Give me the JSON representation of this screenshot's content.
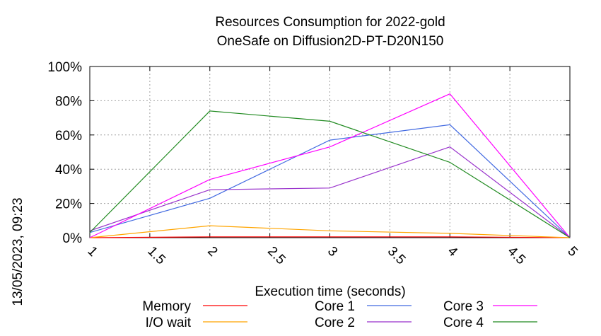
{
  "chart_data": {
    "type": "line",
    "title": "Resources Consumption for 2022-gold",
    "subtitle": "OneSafe on Diffusion2D-PT-D20N150",
    "side_label": "13/05/2023, 09:23",
    "xlabel": "Execution time (seconds)",
    "ylabel": "",
    "xlim": [
      1,
      5
    ],
    "ylim": [
      0,
      100
    ],
    "x_ticks": [
      "1",
      "1.5",
      "2",
      "2.5",
      "3",
      "3.5",
      "4",
      "4.5",
      "5"
    ],
    "y_ticks": [
      "0%",
      "20%",
      "40%",
      "60%",
      "80%",
      "100%"
    ],
    "grid": true,
    "legend_position": "bottom",
    "x": [
      1,
      2,
      3,
      4,
      5
    ],
    "series": [
      {
        "name": "Memory",
        "color": "#ff0000",
        "values": [
          0,
          0.5,
          0.5,
          0.5,
          0
        ]
      },
      {
        "name": "I/O wait",
        "color": "#ffa500",
        "values": [
          0,
          7,
          4,
          2.5,
          0
        ]
      },
      {
        "name": "Core 1",
        "color": "#4169e1",
        "values": [
          3,
          23,
          57,
          66,
          0
        ]
      },
      {
        "name": "Core 2",
        "color": "#9932cc",
        "values": [
          4,
          28,
          29,
          53,
          0
        ]
      },
      {
        "name": "Core 3",
        "color": "#ff00ff",
        "values": [
          0,
          34,
          53,
          84,
          0
        ]
      },
      {
        "name": "Core 4",
        "color": "#228b22",
        "values": [
          3,
          74,
          68,
          44,
          0
        ]
      }
    ]
  }
}
